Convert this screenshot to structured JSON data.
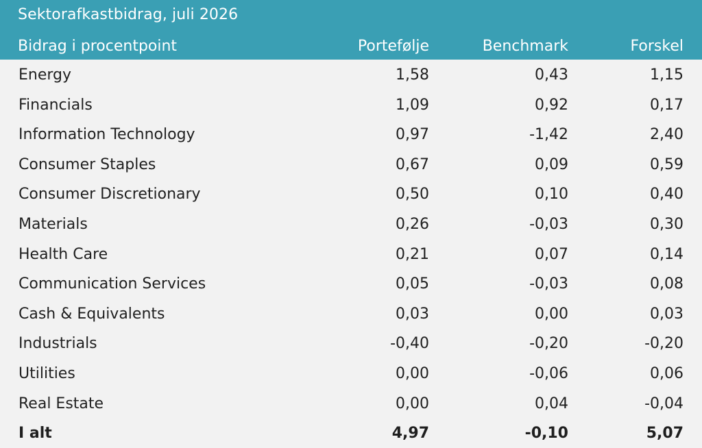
{
  "chart_data": {
    "type": "table",
    "title": "Sektorafkastbidrag, juli 2026",
    "columns": [
      "Bidrag i procentpoint",
      "Portefølje",
      "Benchmark",
      "Forskel"
    ],
    "rows": [
      {
        "label": "Energy",
        "portefolje": "1,58",
        "benchmark": "0,43",
        "forskel": "1,15"
      },
      {
        "label": "Financials",
        "portefolje": "1,09",
        "benchmark": "0,92",
        "forskel": "0,17"
      },
      {
        "label": "Information Technology",
        "portefolje": "0,97",
        "benchmark": "-1,42",
        "forskel": "2,40"
      },
      {
        "label": "Consumer Staples",
        "portefolje": "0,67",
        "benchmark": "0,09",
        "forskel": "0,59"
      },
      {
        "label": "Consumer Discretionary",
        "portefolje": "0,50",
        "benchmark": "0,10",
        "forskel": "0,40"
      },
      {
        "label": "Materials",
        "portefolje": "0,26",
        "benchmark": "-0,03",
        "forskel": "0,30"
      },
      {
        "label": "Health Care",
        "portefolje": "0,21",
        "benchmark": "0,07",
        "forskel": "0,14"
      },
      {
        "label": "Communication Services",
        "portefolje": "0,05",
        "benchmark": "-0,03",
        "forskel": "0,08"
      },
      {
        "label": "Cash & Equivalents",
        "portefolje": "0,03",
        "benchmark": "0,00",
        "forskel": "0,03"
      },
      {
        "label": "Industrials",
        "portefolje": "-0,40",
        "benchmark": "-0,20",
        "forskel": "-0,20"
      },
      {
        "label": "Utilities",
        "portefolje": "0,00",
        "benchmark": "-0,06",
        "forskel": "0,06"
      },
      {
        "label": "Real Estate",
        "portefolje": "0,00",
        "benchmark": "0,04",
        "forskel": "-0,04"
      }
    ],
    "total": {
      "label": "I alt",
      "portefolje": "4,97",
      "benchmark": "-0,10",
      "forskel": "5,07"
    }
  },
  "colors": {
    "header_bg": "#3a9fb4",
    "header_text": "#ffffff",
    "body_bg": "#f2f2f2",
    "body_text": "#1f1f1f"
  }
}
